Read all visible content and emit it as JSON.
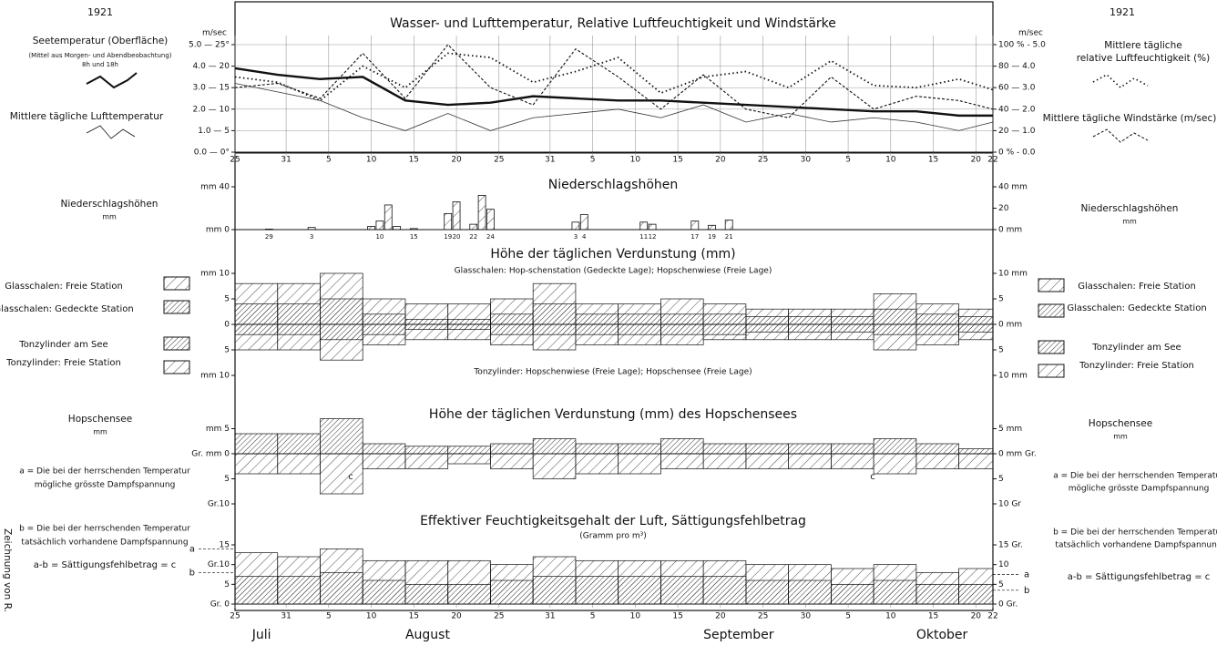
{
  "chart_data": [
    {
      "type": "line",
      "title": "Wasser- und Lufttemperatur, Relative Luftfeuchtigkeit und Windstärke",
      "y_unit": "m/sec",
      "y2_unit": "m/sec",
      "ylim": [
        0,
        25
      ],
      "yticks": [
        {
          "value": 25,
          "label": "5.0 — 25°"
        },
        {
          "value": 20,
          "label": "4.0 — 20"
        },
        {
          "value": 15,
          "label": "3.0 — 15"
        },
        {
          "value": 10,
          "label": "2.0 — 10"
        },
        {
          "value": 5,
          "label": "1.0 — 5"
        },
        {
          "value": 0,
          "label": "0.0 — 0°"
        }
      ],
      "y2lim": [
        0,
        100
      ],
      "y2ticks": [
        {
          "value": 100,
          "label": "100 % - 5.0"
        },
        {
          "value": 80,
          "label": "80 — 4.0"
        },
        {
          "value": 60,
          "label": "60 — 3.0"
        },
        {
          "value": 40,
          "label": "40 — 2.0"
        },
        {
          "value": 20,
          "label": "20 — 1.0"
        },
        {
          "value": 0,
          "label": "0 % - 0.0"
        }
      ],
      "y3lim": [
        0,
        5
      ],
      "xlim": [
        0,
        89
      ],
      "xticks": [
        {
          "value": 0,
          "label": "25"
        },
        {
          "value": 6,
          "label": "31"
        },
        {
          "value": 11,
          "label": "5"
        },
        {
          "value": 16,
          "label": "10"
        },
        {
          "value": 21,
          "label": "15"
        },
        {
          "value": 26,
          "label": "20"
        },
        {
          "value": 31,
          "label": "25"
        },
        {
          "value": 37,
          "label": "31"
        },
        {
          "value": 42,
          "label": "5"
        },
        {
          "value": 47,
          "label": "10"
        },
        {
          "value": 52,
          "label": "15"
        },
        {
          "value": 57,
          "label": "20"
        },
        {
          "value": 62,
          "label": "25"
        },
        {
          "value": 67,
          "label": "30"
        },
        {
          "value": 72,
          "label": "5"
        },
        {
          "value": 77,
          "label": "10"
        },
        {
          "value": 82,
          "label": "15"
        },
        {
          "value": 87,
          "label": "20"
        },
        {
          "value": 89,
          "label": "22"
        }
      ],
      "grid": true,
      "x": [
        0,
        5,
        10,
        15,
        20,
        25,
        30,
        35,
        40,
        45,
        50,
        55,
        60,
        65,
        70,
        75,
        80,
        85,
        89
      ],
      "series": [
        {
          "name": "Seetemperatur (Oberfläche)",
          "color": "#111",
          "style": "thick",
          "values": [
            19.5,
            18,
            17,
            17.5,
            12,
            11,
            11.5,
            13,
            12.5,
            12,
            12,
            11.5,
            11,
            10.5,
            10,
            9.5,
            9.5,
            8.5,
            8.5
          ]
        },
        {
          "name": "Mittlere tägliche Lufttemperatur",
          "color": "#333",
          "style": "thin",
          "values": [
            16,
            14,
            12,
            8,
            5,
            9,
            5,
            8,
            9,
            10,
            8,
            11,
            7,
            9,
            7,
            8,
            7,
            5,
            7
          ]
        },
        {
          "name": "Mittlere tägliche relative Luftfeuchtigkeit (%)",
          "color": "#111",
          "style": "dotted",
          "axis": "y2",
          "values": [
            70,
            65,
            48,
            80,
            60,
            92,
            88,
            65,
            75,
            88,
            55,
            70,
            75,
            60,
            85,
            62,
            60,
            68,
            58
          ]
        },
        {
          "name": "Mittlere tägliche Windstärke (m/sec)",
          "color": "#111",
          "style": "cross",
          "axis": "y3",
          "values": [
            3.0,
            3.2,
            2.5,
            4.6,
            2.5,
            5.0,
            3.0,
            2.2,
            4.8,
            3.5,
            2.0,
            3.6,
            2.0,
            1.6,
            3.5,
            2.0,
            2.6,
            2.4,
            2.0
          ]
        }
      ]
    },
    {
      "type": "bar",
      "title": "Niederschlagshöhen",
      "ylim": [
        0,
        40
      ],
      "yticks": [
        {
          "value": 40,
          "label": "mm 40"
        },
        {
          "value": 0,
          "label": "mm 0"
        }
      ],
      "y2ticks": [
        {
          "value": 40,
          "label": "40 mm"
        },
        20,
        {
          "value": 0,
          "label": "0 mm"
        }
      ],
      "x": [
        4,
        9,
        16,
        17,
        18,
        19,
        21,
        25,
        26,
        28,
        29,
        30,
        40,
        41,
        48,
        49,
        54,
        56,
        58
      ],
      "categories": [
        "29",
        "3",
        null,
        "10",
        null,
        null,
        "15",
        "19",
        "20",
        "22",
        null,
        "24",
        "3",
        "4",
        "11",
        "12",
        "17",
        "19",
        "21"
      ],
      "values": [
        0.5,
        2,
        3,
        8,
        23,
        3,
        1,
        15,
        26,
        5,
        32,
        19,
        7,
        14,
        7,
        5,
        8,
        4,
        9
      ],
      "color": "#111"
    },
    {
      "type": "mirror",
      "title": "Höhe der täglichen Verdunstung (mm)",
      "subtitle": "Glasschalen: Hop-schenstation (Gedeckte Lage); Hopschenwiese (Freie Lage)",
      "note": "Tonzylinder: Hopschenwiese (Freie Lage); Hopschensee (Freie Lage)",
      "ylim": [
        0,
        10
      ],
      "yticks": [
        {
          "value": 10,
          "label": "mm 10"
        },
        5,
        0
      ],
      "yticks_down": [
        5,
        {
          "value": 10,
          "label": "mm 10"
        }
      ],
      "y2ticks": [
        {
          "value": 10,
          "label": "10 mm"
        },
        5,
        {
          "value": 0,
          "label": "0 mm"
        }
      ],
      "y2ticks_down": [
        5,
        {
          "value": 10,
          "label": "10 mm"
        }
      ],
      "x": [
        0,
        5,
        10,
        15,
        20,
        25,
        30,
        35,
        40,
        45,
        50,
        55,
        60,
        65,
        70,
        75,
        80,
        85,
        89
      ],
      "series": [
        {
          "name": "Glasschalen: Freie Station",
          "side": "up",
          "hatch": "wide",
          "values": [
            8,
            8,
            10,
            5,
            4,
            4,
            5,
            8,
            4,
            4,
            5,
            4,
            3,
            3,
            3,
            6,
            4,
            3,
            3
          ]
        },
        {
          "name": "Glasschalen: Gedeckte Station",
          "side": "up",
          "hatch": "dense",
          "values": [
            4,
            4,
            5,
            2,
            1,
            1,
            2,
            4,
            2,
            2,
            2,
            2,
            1.5,
            1.5,
            1.5,
            3,
            2,
            1.5,
            1.5
          ]
        },
        {
          "name": "Tonzylinder: Freie Station",
          "side": "down",
          "hatch": "wide",
          "values": [
            5,
            5,
            7,
            4,
            3,
            3,
            4,
            5,
            4,
            4,
            4,
            3,
            3,
            3,
            3,
            5,
            4,
            3,
            3
          ]
        },
        {
          "name": "Tonzylinder am See",
          "side": "down",
          "hatch": "dense",
          "values": [
            2,
            2,
            3,
            2,
            1,
            1,
            2,
            2,
            2,
            2,
            2,
            2,
            1.5,
            1.5,
            1.5,
            2,
            2,
            1.5,
            1.5
          ]
        }
      ]
    },
    {
      "type": "mirror",
      "title": "Höhe der täglichen Verdunstung (mm) des Hopschensees",
      "ylim": [
        0,
        10
      ],
      "yticks": [
        {
          "value": 5,
          "label": "mm 5"
        },
        {
          "value": 0,
          "label": "Gr. mm 0"
        }
      ],
      "yticks_down": [
        5,
        {
          "value": 10,
          "label": "Gr.10"
        }
      ],
      "y2ticks": [
        {
          "value": 5,
          "label": "5 mm"
        },
        {
          "value": 0,
          "label": "0 mm Gr."
        }
      ],
      "y2ticks_down": [
        5,
        {
          "value": 10,
          "label": "10 Gr"
        }
      ],
      "x": [
        0,
        5,
        10,
        15,
        20,
        25,
        30,
        35,
        40,
        45,
        50,
        55,
        60,
        65,
        70,
        75,
        80,
        85,
        89
      ],
      "annotations": [
        "c",
        "c"
      ],
      "series": [
        {
          "name": "Hopschensee",
          "side": "up",
          "hatch": "dense",
          "values": [
            4,
            4,
            7,
            2,
            1.5,
            1.5,
            2,
            3,
            2,
            2,
            3,
            2,
            2,
            2,
            2,
            3,
            2,
            1,
            1
          ]
        },
        {
          "name": "c",
          "side": "down",
          "hatch": "wide",
          "values": [
            4,
            4,
            8,
            3,
            3,
            2,
            3,
            5,
            4,
            4,
            3,
            3,
            3,
            3,
            3,
            4,
            3,
            3,
            3
          ]
        }
      ]
    },
    {
      "type": "area",
      "title": "Effektiver Feuchtigkeitsgehalt der Luft, Sättigungsfehlbetrag",
      "subtitle": "(Gramm pro m³)",
      "ylim": [
        0,
        15
      ],
      "yticks": [
        {
          "value": 15,
          "label": "15"
        },
        {
          "value": 10,
          "label": "Gr.10"
        },
        5,
        {
          "value": 0,
          "label": "Gr. 0"
        }
      ],
      "y2ticks": [
        {
          "value": 15,
          "label": "15 Gr."
        },
        10,
        5,
        {
          "value": 0,
          "label": "0 Gr."
        }
      ],
      "reference_lines": [
        {
          "value": 14,
          "label": "a"
        },
        {
          "value": 8,
          "label": "b"
        }
      ],
      "reference_lines_right": [
        {
          "value": 7.5,
          "label": "a"
        },
        {
          "value": 3.5,
          "label": "b"
        }
      ],
      "xlim": [
        0,
        89
      ],
      "xticks": [
        {
          "value": 0,
          "label": "25"
        },
        {
          "value": 6,
          "label": "31"
        },
        {
          "value": 11,
          "label": "5"
        },
        {
          "value": 16,
          "label": "10"
        },
        {
          "value": 21,
          "label": "15"
        },
        {
          "value": 26,
          "label": "20"
        },
        {
          "value": 31,
          "label": "25"
        },
        {
          "value": 37,
          "label": "31"
        },
        {
          "value": 42,
          "label": "5"
        },
        {
          "value": 47,
          "label": "10"
        },
        {
          "value": 52,
          "label": "15"
        },
        {
          "value": 57,
          "label": "20"
        },
        {
          "value": 62,
          "label": "25"
        },
        {
          "value": 67,
          "label": "30"
        },
        {
          "value": 72,
          "label": "5"
        },
        {
          "value": 77,
          "label": "10"
        },
        {
          "value": 82,
          "label": "15"
        },
        {
          "value": 87,
          "label": "20"
        },
        {
          "value": 89,
          "label": "22"
        }
      ],
      "months": [
        {
          "value": 2,
          "label": "Juli"
        },
        {
          "value": 20,
          "label": "August"
        },
        {
          "value": 55,
          "label": "September"
        },
        {
          "value": 80,
          "label": "Oktober"
        }
      ],
      "x": [
        0,
        5,
        10,
        15,
        20,
        25,
        30,
        35,
        40,
        45,
        50,
        55,
        60,
        65,
        70,
        75,
        80,
        85,
        89
      ],
      "series": [
        {
          "name": "a",
          "hatch": "wide",
          "values": [
            13,
            12,
            14,
            11,
            11,
            11,
            10,
            12,
            11,
            11,
            11,
            11,
            10,
            10,
            9,
            10,
            8,
            9,
            9
          ]
        },
        {
          "name": "b",
          "hatch": "dense",
          "values": [
            7,
            7,
            8,
            6,
            5,
            5,
            6,
            7,
            7,
            7,
            7,
            7,
            6,
            6,
            5,
            6,
            5,
            5,
            5
          ]
        }
      ]
    }
  ],
  "left_texts": [
    "1921",
    "Seetemperatur (Oberfläche)",
    "(Mittel aus Morgen- und Abendbeobachtung)",
    "8h und 18h",
    "Mittlere tägliche Lufttemperatur",
    "Niederschlagshöhen",
    "mm",
    "Glasschalen: Freie Station",
    "Glasschalen: Gedeckte Station",
    "Tonzylinder am See",
    "Tonzylinder: Freie Station",
    "Hopschensee",
    "mm",
    "a = Die bei der herrschenden Temperatur",
    "mögliche grösste Dampfspannung",
    "b = Die bei der herrschenden Temperatur",
    "tatsächlich vorhandene Dampfspannung",
    "a-b = Sättigungsfehlbetrag = c"
  ],
  "right_texts": [
    "1921",
    "Mittlere tägliche",
    "relative Luftfeuchtigkeit (%)",
    "Mittlere tägliche Windstärke (m/sec)",
    "Niederschlagshöhen",
    "mm",
    "Glasschalen: Freie Station",
    "Glasschalen: Gedeckte Station",
    "Tonzylinder am See",
    "Tonzylinder: Freie Station",
    "Hopschensee",
    "mm",
    "a = Die bei der herrschenden Temperatur",
    "mögliche grösste Dampfspannung",
    "b = Die bei der herrschenden Temperatur",
    "tatsächlich vorhandene Dampfspannung",
    "a-b = Sättigungsfehlbetrag = c"
  ],
  "credit": "Zeichnung von R."
}
